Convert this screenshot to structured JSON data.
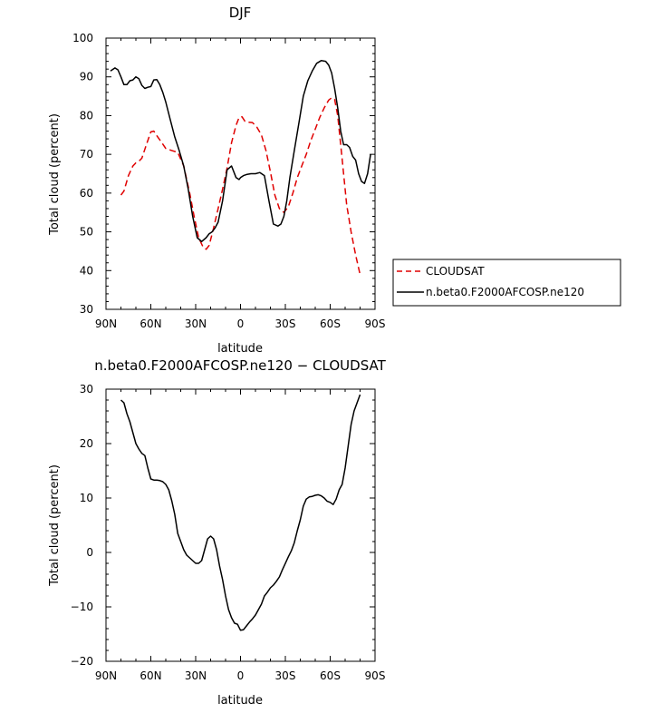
{
  "chart_data": [
    {
      "type": "line",
      "title": "DJF",
      "xlabel": "latitude",
      "ylabel": "Total cloud (percent)",
      "xlim": [
        90,
        -90
      ],
      "ylim": [
        30,
        100
      ],
      "x_ticks": [
        90,
        60,
        30,
        0,
        -30,
        -60,
        -90
      ],
      "x_tick_labels": [
        "90N",
        "60N",
        "30N",
        "0",
        "30S",
        "60S",
        "90S"
      ],
      "y_ticks": [
        30,
        40,
        50,
        60,
        70,
        80,
        90,
        100
      ],
      "y_tick_labels": [
        "30",
        "40",
        "50",
        "60",
        "70",
        "80",
        "90",
        "100"
      ],
      "legend_position": "right",
      "series": [
        {
          "name": "CLOUDSAT",
          "color": "#e00000",
          "dash": "dashed",
          "x": [
            80,
            78,
            75,
            72,
            70,
            68,
            66,
            63,
            60,
            58,
            56,
            53,
            50,
            46,
            42,
            38,
            34,
            31,
            28,
            25,
            23,
            21,
            18,
            15,
            12,
            9,
            6,
            3,
            1,
            -1,
            -3,
            -5,
            -8,
            -11,
            -14,
            -17,
            -20,
            -23,
            -26,
            -29,
            -32,
            -35,
            -38,
            -41,
            -44,
            -47,
            -50,
            -53,
            -56,
            -59,
            -61,
            -63,
            -65,
            -67,
            -69,
            -71,
            -74,
            -77,
            -80
          ],
          "y": [
            59.5,
            60.5,
            64.5,
            67,
            67.8,
            68.2,
            69,
            72.5,
            75.8,
            76,
            74.8,
            73.2,
            71.5,
            71,
            70.5,
            67,
            60,
            54,
            48.5,
            46,
            45.5,
            46.5,
            51,
            56,
            61,
            66.5,
            73,
            77.5,
            79.5,
            79.7,
            78.5,
            78.3,
            78.2,
            77,
            75,
            71,
            65.5,
            59.5,
            56,
            55,
            56.5,
            60,
            64,
            67,
            70,
            73.5,
            76.5,
            79.5,
            82,
            84,
            84.6,
            84.2,
            80,
            72.5,
            65,
            57,
            50,
            44,
            39
          ]
        },
        {
          "name": "n.beta0.F2000AFCOSP.ne120",
          "color": "#000000",
          "dash": "solid",
          "x": [
            87,
            84,
            82,
            80,
            78,
            76,
            74,
            72,
            70,
            68,
            66,
            64,
            62,
            60,
            58,
            56,
            54,
            52,
            50,
            47,
            44,
            41,
            38,
            35,
            32,
            29,
            26,
            23,
            21,
            19,
            17,
            15,
            12,
            9,
            6,
            3,
            1,
            0,
            -2,
            -4,
            -7,
            -10,
            -13,
            -16,
            -19,
            -22,
            -25,
            -27,
            -29,
            -31,
            -33,
            -36,
            -39,
            -42,
            -45,
            -48,
            -51,
            -54,
            -57,
            -59,
            -61,
            -63,
            -65,
            -67,
            -69,
            -71,
            -73,
            -75,
            -77,
            -79,
            -81,
            -83,
            -85,
            -87
          ],
          "y": [
            91.5,
            92.3,
            91.8,
            90,
            88,
            88,
            89,
            89.2,
            90,
            89.5,
            87.8,
            87,
            87.3,
            87.5,
            89.2,
            89.3,
            88,
            86,
            83.5,
            79,
            74.5,
            71,
            67,
            61,
            54,
            48.5,
            47.5,
            48.5,
            49.5,
            50,
            51,
            52.5,
            58,
            66,
            67,
            64,
            63.5,
            64,
            64.5,
            64.8,
            65,
            65,
            65.3,
            64.5,
            58,
            52,
            51.5,
            52,
            54,
            58,
            64,
            71,
            78,
            85,
            89,
            91.5,
            93.5,
            94.2,
            94,
            93,
            91,
            87,
            82,
            76,
            72.5,
            72.5,
            71.8,
            69.5,
            68.5,
            65,
            63,
            62.5,
            65,
            70
          ]
        }
      ]
    },
    {
      "type": "line",
      "title": "n.beta0.F2000AFCOSP.ne120 − CLOUDSAT",
      "xlabel": "latitude",
      "ylabel": "Total cloud (percent)",
      "xlim": [
        90,
        -90
      ],
      "ylim": [
        -20,
        30
      ],
      "x_ticks": [
        90,
        60,
        30,
        0,
        -30,
        -60,
        -90
      ],
      "x_tick_labels": [
        "90N",
        "60N",
        "30N",
        "0",
        "30S",
        "60S",
        "90S"
      ],
      "y_ticks": [
        -20,
        -10,
        0,
        10,
        20,
        30
      ],
      "y_tick_labels": [
        "−20",
        "−10",
        "0",
        "10",
        "20",
        "30"
      ],
      "series": [
        {
          "color": "#000000",
          "dash": "solid",
          "x": [
            80,
            78,
            76,
            74,
            72,
            70,
            68,
            66,
            64,
            62,
            60,
            58,
            56,
            54,
            52,
            50,
            48,
            46,
            44,
            42,
            40,
            38,
            36,
            34,
            32,
            30,
            28,
            26,
            24,
            22,
            20,
            18,
            16,
            14,
            12,
            10,
            8,
            6,
            4,
            2,
            0,
            -2,
            -4,
            -6,
            -8,
            -10,
            -12,
            -14,
            -16,
            -18,
            -20,
            -22,
            -24,
            -26,
            -28,
            -30,
            -32,
            -34,
            -36,
            -38,
            -40,
            -42,
            -44,
            -46,
            -48,
            -50,
            -52,
            -54,
            -56,
            -58,
            -60,
            -62,
            -64,
            -66,
            -68,
            -70,
            -72,
            -74,
            -76,
            -78,
            -80
          ],
          "y": [
            28,
            27.5,
            25.5,
            24,
            22,
            20,
            19,
            18.2,
            17.8,
            15.5,
            13.5,
            13.3,
            13.3,
            13.2,
            13,
            12.5,
            11.5,
            9.5,
            7,
            3.5,
            2,
            0.5,
            -0.5,
            -1,
            -1.5,
            -2,
            -2,
            -1.5,
            0.5,
            2.5,
            3,
            2.5,
            0.5,
            -2.5,
            -5,
            -8,
            -10.5,
            -12,
            -13,
            -13.2,
            -14.3,
            -14.2,
            -13.5,
            -12.8,
            -12.2,
            -11.5,
            -10.5,
            -9.5,
            -8,
            -7.3,
            -6.5,
            -6,
            -5.3,
            -4.5,
            -3.2,
            -2,
            -0.8,
            0.3,
            1.8,
            4,
            6,
            8.5,
            9.8,
            10.2,
            10.3,
            10.5,
            10.6,
            10.4,
            10,
            9.4,
            9.2,
            8.8,
            9.8,
            11.5,
            12.5,
            15.5,
            19.5,
            23.5,
            26,
            27.5,
            29
          ]
        }
      ]
    }
  ],
  "legend": {
    "items": [
      {
        "label": "CLOUDSAT",
        "color": "#e00000",
        "dash": "dashed"
      },
      {
        "label": "n.beta0.F2000AFCOSP.ne120",
        "color": "#000000",
        "dash": "solid"
      }
    ]
  }
}
